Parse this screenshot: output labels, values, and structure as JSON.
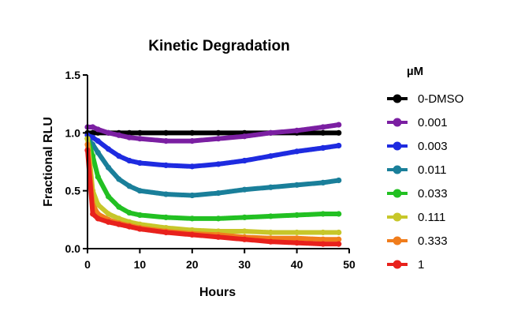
{
  "chart_data": {
    "type": "scatter",
    "title": "Kinetic Degradation",
    "xlabel": "Hours",
    "ylabel": "Fractional RLU",
    "xlim": [
      0,
      50
    ],
    "ylim": [
      0,
      1.5
    ],
    "x_ticks": [
      0,
      10,
      20,
      30,
      40,
      50
    ],
    "y_ticks": [
      0.0,
      0.5,
      1.0,
      1.5
    ],
    "x_tick_labels": [
      "0",
      "10",
      "20",
      "30",
      "40",
      "50"
    ],
    "y_tick_labels": [
      "0.0",
      "0.5",
      "1.0",
      "1.5"
    ],
    "grid": false,
    "legend_title": "µM",
    "legend_position": "right",
    "series": [
      {
        "name": "0-DMSO",
        "color": "#000000",
        "x": [
          0,
          1,
          2,
          4,
          6,
          8,
          10,
          15,
          20,
          25,
          30,
          35,
          40,
          45,
          48
        ],
        "y": [
          1.0,
          1.0,
          1.0,
          1.0,
          1.0,
          1.0,
          1.0,
          1.0,
          1.0,
          1.0,
          1.0,
          1.0,
          1.0,
          1.0,
          1.0
        ]
      },
      {
        "name": "0.001",
        "color": "#7B1FA2",
        "x": [
          0,
          1,
          2,
          4,
          6,
          8,
          10,
          15,
          20,
          25,
          30,
          35,
          40,
          45,
          48
        ],
        "y": [
          1.05,
          1.05,
          1.03,
          1.0,
          0.98,
          0.96,
          0.95,
          0.93,
          0.93,
          0.95,
          0.97,
          1.0,
          1.02,
          1.05,
          1.07
        ]
      },
      {
        "name": "0.003",
        "color": "#1E2BE0",
        "x": [
          0,
          1,
          2,
          4,
          6,
          8,
          10,
          15,
          20,
          25,
          30,
          35,
          40,
          45,
          48
        ],
        "y": [
          0.98,
          0.96,
          0.93,
          0.86,
          0.8,
          0.76,
          0.74,
          0.72,
          0.71,
          0.73,
          0.76,
          0.8,
          0.84,
          0.87,
          0.89
        ]
      },
      {
        "name": "0.011",
        "color": "#1A7F9A",
        "x": [
          0,
          1,
          2,
          4,
          6,
          8,
          10,
          15,
          20,
          25,
          30,
          35,
          40,
          45,
          48
        ],
        "y": [
          0.95,
          0.9,
          0.83,
          0.7,
          0.6,
          0.54,
          0.5,
          0.47,
          0.46,
          0.48,
          0.51,
          0.53,
          0.55,
          0.57,
          0.59
        ]
      },
      {
        "name": "0.033",
        "color": "#22C022",
        "x": [
          0,
          1,
          2,
          4,
          6,
          8,
          10,
          15,
          20,
          25,
          30,
          35,
          40,
          45,
          48
        ],
        "y": [
          0.95,
          0.8,
          0.62,
          0.45,
          0.36,
          0.31,
          0.29,
          0.27,
          0.26,
          0.26,
          0.27,
          0.28,
          0.29,
          0.3,
          0.3
        ]
      },
      {
        "name": "0.111",
        "color": "#C7C72A",
        "x": [
          0,
          1,
          2,
          4,
          6,
          8,
          10,
          15,
          20,
          25,
          30,
          35,
          40,
          45,
          48
        ],
        "y": [
          0.95,
          0.5,
          0.38,
          0.3,
          0.26,
          0.23,
          0.21,
          0.18,
          0.16,
          0.15,
          0.15,
          0.14,
          0.14,
          0.14,
          0.14
        ]
      },
      {
        "name": "0.333",
        "color": "#F07D1C",
        "x": [
          0,
          1,
          2,
          4,
          6,
          8,
          10,
          15,
          20,
          25,
          30,
          35,
          40,
          45,
          48
        ],
        "y": [
          0.9,
          0.38,
          0.3,
          0.25,
          0.22,
          0.2,
          0.18,
          0.15,
          0.13,
          0.12,
          0.1,
          0.09,
          0.09,
          0.08,
          0.08
        ]
      },
      {
        "name": "1",
        "color": "#E8211C",
        "x": [
          0,
          1,
          2,
          4,
          6,
          8,
          10,
          15,
          20,
          25,
          30,
          35,
          40,
          45,
          48
        ],
        "y": [
          0.85,
          0.3,
          0.26,
          0.23,
          0.21,
          0.19,
          0.17,
          0.14,
          0.12,
          0.1,
          0.08,
          0.06,
          0.05,
          0.04,
          0.04
        ]
      }
    ]
  }
}
